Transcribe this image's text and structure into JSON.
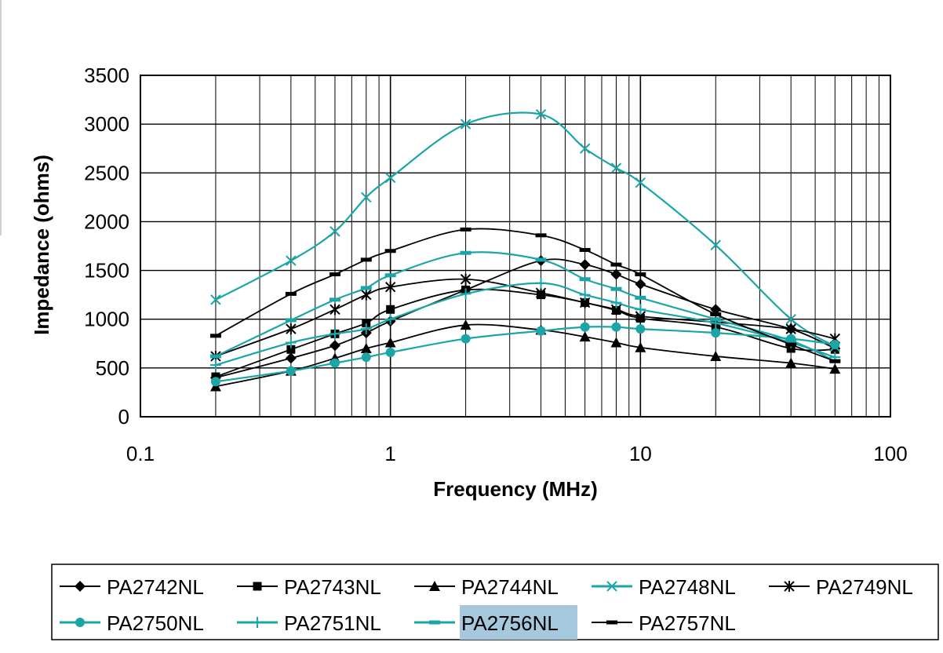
{
  "chart_data": {
    "type": "line",
    "title": "",
    "xlabel": "Frequency (MHz)",
    "ylabel": "Impedance (ohms)",
    "x_scale": "log",
    "xlim": [
      0.1,
      100
    ],
    "ylim": [
      0,
      3500
    ],
    "x_ticks": [
      0.1,
      1,
      10,
      100
    ],
    "x_tick_labels": [
      "0.1",
      "1",
      "10",
      "100"
    ],
    "y_ticks": [
      0,
      500,
      1000,
      1500,
      2000,
      2500,
      3000,
      3500
    ],
    "y_tick_labels": [
      "0",
      "500",
      "1000",
      "1500",
      "2000",
      "2500",
      "3000",
      "3500"
    ],
    "grid": true,
    "legend_position": "bottom",
    "x": [
      0.2,
      0.4,
      0.6,
      0.8,
      1,
      2,
      4,
      6,
      8,
      10,
      20,
      40,
      60
    ],
    "series": [
      {
        "name": "PA2742NL",
        "color": "#000000",
        "marker": "diamond",
        "values": [
          400,
          600,
          730,
          860,
          980,
          1300,
          1600,
          1560,
          1460,
          1360,
          1100,
          900,
          700
        ]
      },
      {
        "name": "PA2743NL",
        "color": "#000000",
        "marker": "square",
        "values": [
          410,
          690,
          850,
          960,
          1100,
          1300,
          1250,
          1170,
          1090,
          1010,
          920,
          700,
          690
        ]
      },
      {
        "name": "PA2744NL",
        "color": "#000000",
        "marker": "triangle",
        "values": [
          310,
          470,
          600,
          700,
          760,
          940,
          890,
          820,
          760,
          710,
          620,
          550,
          490
        ]
      },
      {
        "name": "PA2748NL",
        "color": "#1aa6a6",
        "marker": "x",
        "values": [
          1200,
          1600,
          1900,
          2250,
          2450,
          3000,
          3100,
          2750,
          2550,
          2400,
          1760,
          1000,
          720
        ]
      },
      {
        "name": "PA2749NL",
        "color": "#000000",
        "marker": "star",
        "values": [
          620,
          900,
          1100,
          1250,
          1330,
          1410,
          1270,
          1170,
          1100,
          1030,
          970,
          900,
          800
        ]
      },
      {
        "name": "PA2750NL",
        "color": "#1aa6a6",
        "marker": "circle",
        "values": [
          360,
          470,
          550,
          610,
          660,
          800,
          880,
          920,
          920,
          900,
          860,
          800,
          740
        ]
      },
      {
        "name": "PA2751NL",
        "color": "#1aa6a6",
        "marker": "plus",
        "values": [
          530,
          760,
          850,
          900,
          1000,
          1260,
          1370,
          1250,
          1170,
          1100,
          960,
          760,
          610
        ]
      },
      {
        "name": "PA2756NL",
        "color": "#1aa6a6",
        "marker": "dash",
        "values": [
          620,
          990,
          1200,
          1320,
          1450,
          1680,
          1610,
          1410,
          1310,
          1220,
          1000,
          780,
          570
        ]
      },
      {
        "name": "PA2757NL",
        "color": "#000000",
        "marker": "dash",
        "values": [
          830,
          1260,
          1460,
          1610,
          1700,
          1920,
          1860,
          1710,
          1560,
          1460,
          1050,
          740,
          570
        ]
      }
    ]
  }
}
